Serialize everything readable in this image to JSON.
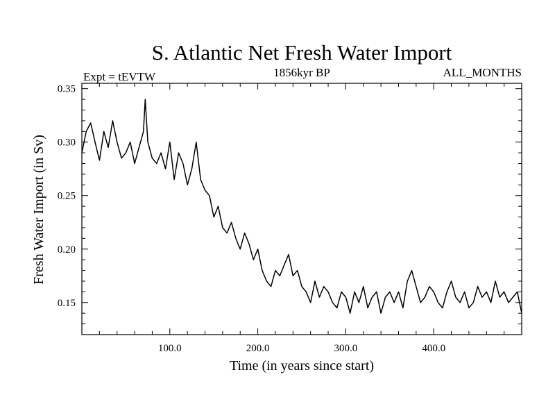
{
  "chart_data": {
    "type": "line",
    "title": "S. Atlantic Net Fresh Water Import",
    "subtitle_left": "Expt = tEVTW",
    "subtitle_center": "1856kyr BP",
    "subtitle_right": "ALL_MONTHS",
    "xlabel": "Time (in years since start)",
    "ylabel": "Fresh Water Import (in Sv)",
    "xlim": [
      0,
      500
    ],
    "ylim": [
      0.12,
      0.355
    ],
    "xticks": [
      100,
      200,
      300,
      400
    ],
    "xtick_labels": [
      "100.0",
      "200.0",
      "300.0",
      "400.0"
    ],
    "yticks": [
      0.15,
      0.2,
      0.25,
      0.3,
      0.35
    ],
    "ytick_labels": [
      "0.15",
      "0.20",
      "0.25",
      "0.30",
      "0.35"
    ],
    "grid": false,
    "line_color": "#000000",
    "series": [
      {
        "name": "Fresh Water Import",
        "x": [
          0,
          5,
          10,
          15,
          20,
          25,
          30,
          35,
          40,
          45,
          50,
          55,
          60,
          65,
          70,
          72,
          75,
          80,
          85,
          90,
          95,
          100,
          105,
          110,
          115,
          120,
          125,
          130,
          135,
          140,
          145,
          150,
          155,
          160,
          165,
          170,
          175,
          180,
          185,
          190,
          195,
          200,
          205,
          210,
          215,
          220,
          225,
          230,
          235,
          240,
          245,
          250,
          255,
          260,
          265,
          270,
          275,
          280,
          285,
          290,
          295,
          300,
          305,
          310,
          315,
          320,
          325,
          330,
          335,
          340,
          345,
          350,
          355,
          360,
          365,
          370,
          375,
          380,
          385,
          390,
          395,
          400,
          405,
          410,
          415,
          420,
          425,
          430,
          435,
          440,
          445,
          450,
          455,
          460,
          465,
          470,
          475,
          480,
          485,
          490,
          495,
          500
        ],
        "values": [
          0.29,
          0.31,
          0.318,
          0.3,
          0.283,
          0.31,
          0.295,
          0.32,
          0.3,
          0.285,
          0.29,
          0.3,
          0.28,
          0.295,
          0.31,
          0.34,
          0.3,
          0.285,
          0.28,
          0.29,
          0.275,
          0.3,
          0.265,
          0.29,
          0.28,
          0.26,
          0.275,
          0.3,
          0.265,
          0.255,
          0.25,
          0.23,
          0.24,
          0.22,
          0.215,
          0.225,
          0.21,
          0.2,
          0.215,
          0.205,
          0.19,
          0.2,
          0.18,
          0.17,
          0.165,
          0.18,
          0.175,
          0.185,
          0.195,
          0.175,
          0.18,
          0.165,
          0.16,
          0.15,
          0.17,
          0.155,
          0.165,
          0.16,
          0.15,
          0.145,
          0.16,
          0.155,
          0.14,
          0.16,
          0.15,
          0.165,
          0.145,
          0.155,
          0.16,
          0.14,
          0.155,
          0.16,
          0.15,
          0.16,
          0.145,
          0.17,
          0.18,
          0.165,
          0.15,
          0.155,
          0.165,
          0.16,
          0.15,
          0.145,
          0.16,
          0.17,
          0.155,
          0.15,
          0.16,
          0.145,
          0.15,
          0.165,
          0.155,
          0.16,
          0.15,
          0.17,
          0.155,
          0.16,
          0.15,
          0.155,
          0.16,
          0.14
        ]
      }
    ]
  }
}
